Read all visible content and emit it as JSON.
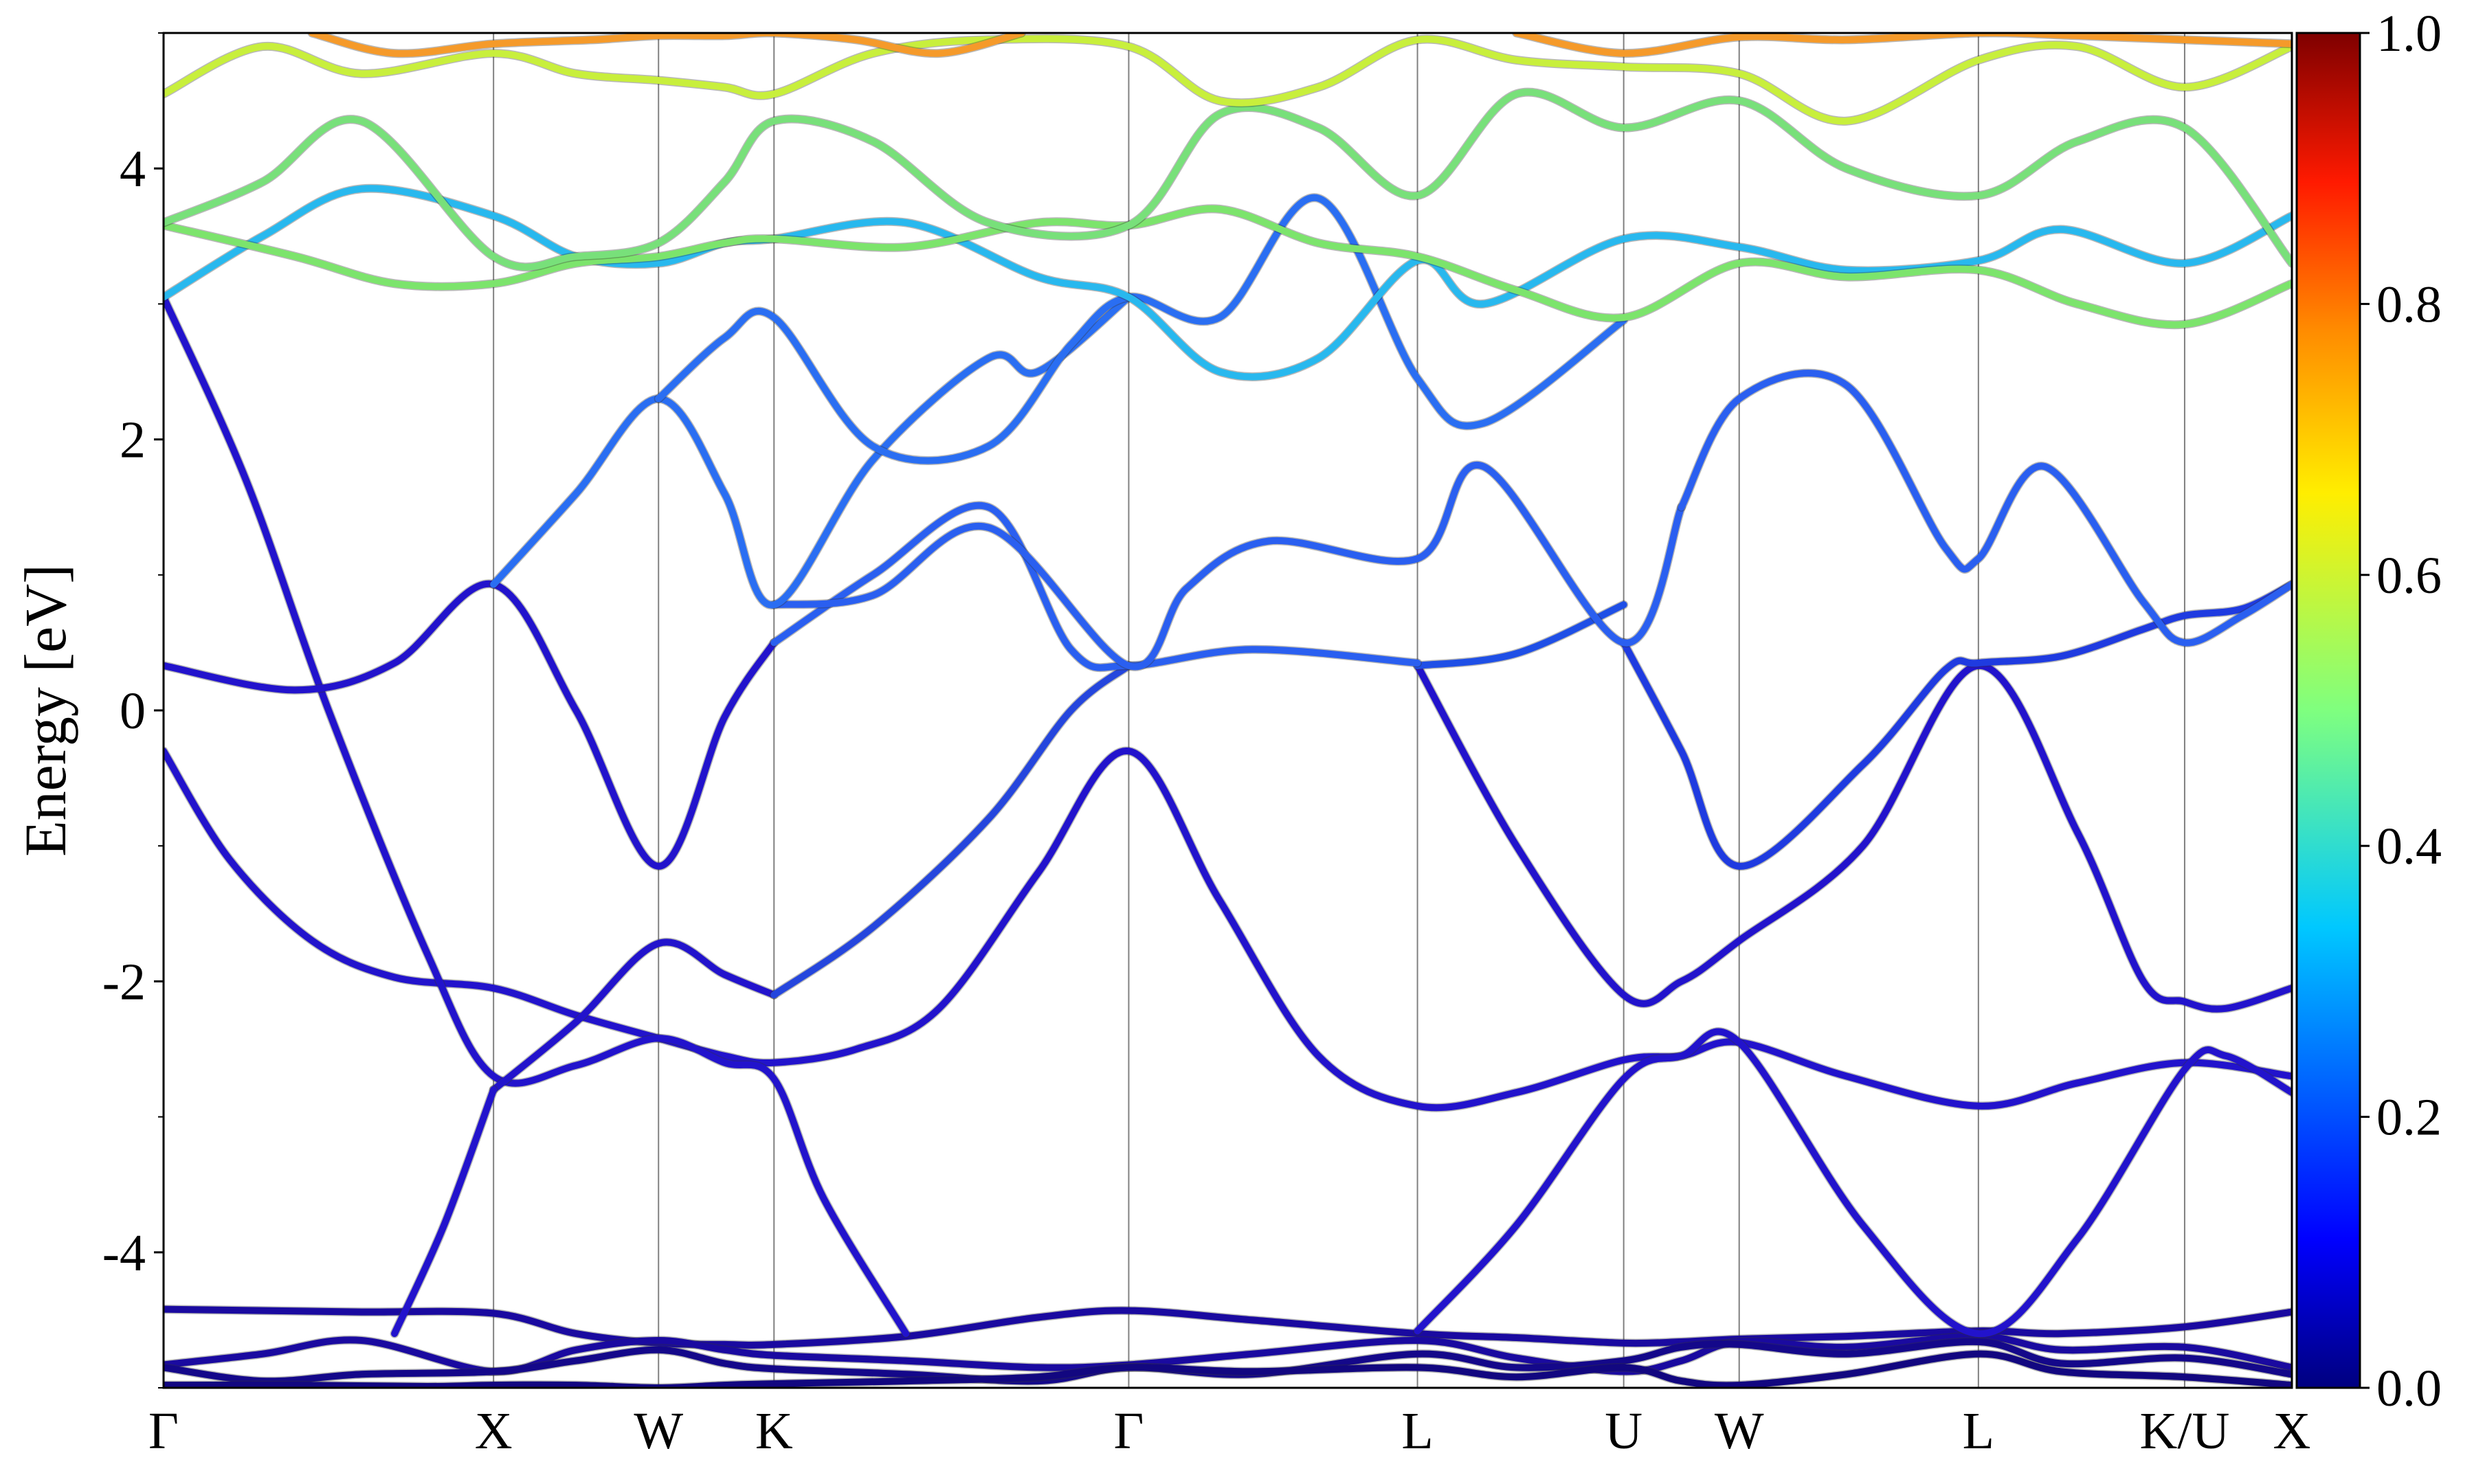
{
  "chart_data": {
    "type": "line",
    "title": "",
    "xlabel": "",
    "ylabel": "Energy [eV]",
    "ylim": [
      -5,
      5
    ],
    "yticks": [
      -4,
      -2,
      0,
      2,
      4
    ],
    "yticklabels": [
      "-4",
      "-2",
      "0",
      "2",
      "4"
    ],
    "xlim": [
      0,
      12.9
    ],
    "kpoints": [
      {
        "label": "Γ",
        "x": 0.0
      },
      {
        "label": "X",
        "x": 2.0
      },
      {
        "label": "W",
        "x": 3.0
      },
      {
        "label": "K",
        "x": 3.7
      },
      {
        "label": "Γ",
        "x": 5.85
      },
      {
        "label": "L",
        "x": 7.6
      },
      {
        "label": "U",
        "x": 8.85
      },
      {
        "label": "W",
        "x": 9.55
      },
      {
        "label": "L",
        "x": 11.0
      },
      {
        "label": "K/U",
        "x": 12.25
      },
      {
        "label": "X",
        "x": 12.9
      }
    ],
    "grid": false,
    "colorbar": {
      "min": 0.0,
      "max": 1.0,
      "ticks": [
        "0.0",
        "0.2",
        "0.4",
        "0.6",
        "0.8",
        "1.0"
      ],
      "colormap": "jet"
    },
    "series": [
      {
        "color": "#1a0aa0",
        "x": [
          0,
          0.6,
          1.2,
          2.0,
          2.5,
          3.0,
          3.4,
          3.7,
          4.5,
          5.3,
          5.85,
          6.6,
          7.6,
          8.2,
          8.85,
          9.2,
          9.55,
          10.2,
          11.0,
          11.5,
          12.25,
          12.9
        ],
        "values": [
          -4.42,
          -4.43,
          -4.44,
          -4.45,
          -4.6,
          -4.67,
          -4.68,
          -4.68,
          -4.62,
          -4.48,
          -4.43,
          -4.5,
          -4.6,
          -4.63,
          -4.67,
          -4.66,
          -4.64,
          -4.62,
          -4.58,
          -4.6,
          -4.55,
          -4.44
        ]
      },
      {
        "color": "#1a0aa0",
        "x": [
          0,
          0.6,
          1.2,
          2.0,
          2.5,
          3.0,
          3.4,
          3.7,
          4.5,
          5.3,
          5.85,
          6.6,
          7.6,
          8.2,
          8.85,
          9.2,
          9.55,
          10.2,
          11.0,
          11.5,
          12.25,
          12.9
        ],
        "values": [
          -4.83,
          -4.75,
          -4.65,
          -4.88,
          -4.72,
          -4.65,
          -4.72,
          -4.76,
          -4.8,
          -4.85,
          -4.83,
          -4.75,
          -4.65,
          -4.78,
          -4.88,
          -4.8,
          -4.66,
          -4.7,
          -4.62,
          -4.72,
          -4.7,
          -4.85
        ]
      },
      {
        "color": "#14088a",
        "x": [
          0,
          0.6,
          1.2,
          2.0,
          2.5,
          3.0,
          3.4,
          3.7,
          4.5,
          5.3,
          5.85,
          6.6,
          7.6,
          8.2,
          8.85,
          9.2,
          9.55,
          10.2,
          11.0,
          11.5,
          12.25,
          12.9
        ],
        "values": [
          -4.85,
          -4.95,
          -4.9,
          -4.88,
          -4.8,
          -4.72,
          -4.82,
          -4.86,
          -4.9,
          -4.95,
          -4.85,
          -4.9,
          -4.75,
          -4.85,
          -4.8,
          -4.7,
          -4.68,
          -4.75,
          -4.66,
          -4.82,
          -4.78,
          -4.9
        ]
      },
      {
        "color": "#120780",
        "x": [
          0,
          0.8,
          1.6,
          2.0,
          2.5,
          3.0,
          3.4,
          3.7,
          4.5,
          5.3,
          5.85,
          6.6,
          7.6,
          8.2,
          8.85,
          9.2,
          9.55,
          10.2,
          11.0,
          11.5,
          12.25,
          12.9
        ],
        "values": [
          -4.98,
          -4.98,
          -4.99,
          -4.98,
          -4.98,
          -5.0,
          -4.98,
          -4.97,
          -4.95,
          -4.92,
          -4.85,
          -4.88,
          -4.85,
          -4.92,
          -4.85,
          -4.95,
          -4.98,
          -4.9,
          -4.75,
          -4.88,
          -4.92,
          -4.98
        ]
      },
      {
        "color": "#2213cc",
        "x": [
          0,
          0.4,
          0.9,
          1.4,
          2.0,
          2.5,
          3.0,
          3.4,
          3.7,
          4.2,
          4.7,
          5.3,
          5.85,
          6.4,
          7.0,
          7.6,
          8.2,
          8.85,
          9.2,
          9.55,
          10.2,
          11.0,
          11.6,
          12.25,
          12.9
        ],
        "values": [
          -0.3,
          -1.1,
          -1.7,
          -1.97,
          -2.05,
          -2.25,
          -2.42,
          -2.55,
          -2.6,
          -2.5,
          -2.2,
          -1.2,
          -0.3,
          -1.4,
          -2.55,
          -2.92,
          -2.82,
          -2.58,
          -2.55,
          -2.45,
          -2.7,
          -2.92,
          -2.75,
          -2.6,
          -2.7
        ]
      },
      {
        "color": "#2213cc",
        "x": [
          0,
          0.5,
          1.0,
          1.6,
          2.0,
          2.5,
          3.0,
          3.4,
          3.7,
          4.0,
          4.5
        ],
        "values": [
          3.05,
          1.7,
          0.0,
          -1.8,
          -2.7,
          -2.62,
          -2.42,
          -2.6,
          -2.72,
          -3.6,
          -4.6
        ]
      },
      {
        "color": "#2213cc",
        "x": [
          0,
          0.8,
          1.4,
          2.0,
          2.5,
          3.0,
          3.4,
          3.7
        ],
        "values": [
          0.33,
          0.15,
          0.35,
          0.93,
          0.0,
          -1.15,
          -0.05,
          0.5
        ]
      },
      {
        "color": "#2213cc",
        "x": [
          2.0,
          2.5,
          3.0,
          3.4,
          3.7
        ],
        "values": [
          -2.8,
          -2.3,
          -1.72,
          -1.95,
          -2.1
        ]
      },
      {
        "color": "#2213cc",
        "x": [
          1.4,
          1.7,
          2.0
        ],
        "values": [
          -4.6,
          -3.8,
          -2.8
        ]
      },
      {
        "color": "#2213cc",
        "x": [
          7.6,
          8.2,
          8.85,
          9.2,
          9.55,
          10.3,
          11.0,
          11.6,
          12.25,
          12.5,
          12.9
        ],
        "values": [
          -4.58,
          -3.8,
          -2.72,
          -2.55,
          -2.45,
          -3.8,
          -4.6,
          -3.9,
          -2.65,
          -2.55,
          -2.82
        ]
      },
      {
        "color": "#2213cc",
        "x": [
          7.6,
          8.2,
          8.85,
          9.2,
          9.55,
          10.3,
          11.0,
          11.6,
          12.0,
          12.25,
          12.5,
          12.9
        ],
        "values": [
          0.33,
          -1.0,
          -2.1,
          -2.0,
          -1.7,
          -1.0,
          0.33,
          -0.9,
          -2.0,
          -2.15,
          -2.2,
          -2.05
        ]
      },
      {
        "color": "#1f3be0",
        "x": [
          8.85,
          9.2,
          9.55,
          10.3,
          10.8,
          11.0,
          11.5,
          12.0,
          12.25,
          12.6,
          12.9
        ],
        "values": [
          0.5,
          -0.3,
          -1.15,
          -0.4,
          0.3,
          0.35,
          0.4,
          0.6,
          0.7,
          0.75,
          0.93
        ]
      },
      {
        "color": "#1f4fe6",
        "x": [
          7.6,
          8.2,
          8.85
        ],
        "values": [
          0.33,
          0.42,
          0.78
        ]
      },
      {
        "color": "#2546dd",
        "x": [
          3.7,
          4.3,
          5.0,
          5.5,
          5.85
        ],
        "values": [
          -2.1,
          -1.6,
          -0.8,
          0.0,
          0.33
        ]
      },
      {
        "color": "#2a5ff0",
        "x": [
          3.7,
          4.3,
          5.0,
          5.5,
          5.85,
          6.6,
          7.6
        ],
        "values": [
          0.5,
          1.0,
          1.5,
          0.45,
          0.33,
          0.45,
          0.35
        ]
      },
      {
        "color": "#2a5ff0",
        "x": [
          3.7,
          4.3,
          5.0,
          5.85,
          6.2,
          6.7,
          7.6,
          8.0,
          8.85,
          9.2
        ],
        "values": [
          0.78,
          0.85,
          1.35,
          0.33,
          0.9,
          1.25,
          1.12,
          1.8,
          0.5,
          1.5
        ]
      },
      {
        "color": "#2a5ff0",
        "x": [
          9.2,
          9.55,
          10.2,
          10.8,
          11.0,
          11.4,
          12.0,
          12.25,
          12.6,
          12.9
        ],
        "values": [
          1.5,
          2.3,
          2.4,
          1.2,
          1.12,
          1.8,
          0.8,
          0.5,
          0.7,
          0.93
        ]
      },
      {
        "color": "#2a6ef2",
        "x": [
          2.0,
          2.5,
          3.0,
          3.4,
          3.7,
          4.3,
          5.0,
          5.3,
          5.85
        ],
        "values": [
          0.93,
          1.6,
          2.3,
          1.6,
          0.78,
          1.85,
          2.6,
          2.5,
          3.05
        ]
      },
      {
        "color": "#2a6ef2",
        "x": [
          3.0,
          3.4,
          3.7,
          4.3,
          5.0,
          5.5,
          5.85,
          6.4,
          7.0,
          7.6,
          8.0,
          8.85
        ],
        "values": [
          2.3,
          2.75,
          2.9,
          1.95,
          1.95,
          2.7,
          3.05,
          2.9,
          3.78,
          2.45,
          2.12,
          2.88
        ]
      },
      {
        "color": "#28b8ee",
        "x": [
          0,
          0.6,
          1.2,
          2.0,
          2.5,
          3.0,
          3.4,
          3.7,
          4.5,
          5.3,
          5.85,
          6.4,
          7.0,
          7.6,
          8.0,
          8.85,
          9.55,
          10.2,
          11.0,
          11.5,
          12.25,
          12.9
        ],
        "values": [
          3.05,
          3.5,
          3.85,
          3.65,
          3.35,
          3.3,
          3.45,
          3.48,
          3.6,
          3.2,
          3.05,
          2.5,
          2.6,
          3.32,
          3.0,
          3.48,
          3.42,
          3.25,
          3.32,
          3.55,
          3.3,
          3.65
        ]
      },
      {
        "color": "#7ce46c",
        "x": [
          0,
          0.8,
          1.4,
          2.0,
          2.5,
          3.0,
          3.4,
          3.7,
          4.5,
          5.3,
          5.85,
          6.4,
          7.0,
          7.6,
          8.2,
          8.85,
          9.55,
          10.2,
          11.0,
          11.6,
          12.25,
          12.9
        ],
        "values": [
          3.58,
          3.35,
          3.15,
          3.15,
          3.3,
          3.35,
          3.45,
          3.48,
          3.42,
          3.6,
          3.58,
          3.7,
          3.45,
          3.35,
          3.1,
          2.9,
          3.3,
          3.2,
          3.25,
          3.0,
          2.85,
          3.15
        ]
      },
      {
        "color": "#78e07a",
        "x": [
          0,
          0.6,
          1.2,
          2.0,
          2.5,
          3.0,
          3.4,
          3.7,
          4.3,
          5.0,
          5.85,
          6.4,
          7.0,
          7.6,
          8.2,
          8.85,
          9.55,
          10.2,
          11.0,
          11.6,
          12.25,
          12.9
        ],
        "values": [
          3.6,
          3.9,
          4.35,
          3.35,
          3.35,
          3.45,
          3.9,
          4.35,
          4.2,
          3.6,
          3.58,
          4.4,
          4.3,
          3.8,
          4.55,
          4.3,
          4.5,
          4.0,
          3.8,
          4.2,
          4.3,
          3.3
        ]
      },
      {
        "color": "#c8ef3c",
        "x": [
          0,
          0.6,
          1.2,
          2.0,
          2.5,
          3.0,
          3.4,
          3.7,
          4.3,
          5.0,
          5.85,
          6.4,
          7.0,
          7.6,
          8.2,
          8.85,
          9.55,
          10.2,
          11.0,
          11.6,
          12.25,
          12.9
        ],
        "values": [
          4.55,
          4.9,
          4.7,
          4.85,
          4.7,
          4.65,
          4.6,
          4.55,
          4.85,
          4.95,
          4.9,
          4.5,
          4.6,
          4.95,
          4.8,
          4.75,
          4.7,
          4.35,
          4.8,
          4.9,
          4.6,
          4.9
        ]
      },
      {
        "color": "#f59a2a",
        "x": [
          0.9,
          1.4,
          2.0,
          2.6,
          3.0,
          3.4,
          3.7,
          4.2,
          4.7,
          5.2
        ],
        "values": [
          5.0,
          4.85,
          4.92,
          4.95,
          4.98,
          4.98,
          5.0,
          4.95,
          4.85,
          5.0
        ]
      },
      {
        "color": "#f59a2a",
        "x": [
          8.2,
          8.85,
          9.55,
          10.2,
          11.0,
          11.6,
          12.25,
          12.9
        ],
        "values": [
          5.0,
          4.85,
          4.97,
          4.95,
          5.0,
          4.98,
          4.95,
          4.92
        ]
      }
    ]
  }
}
